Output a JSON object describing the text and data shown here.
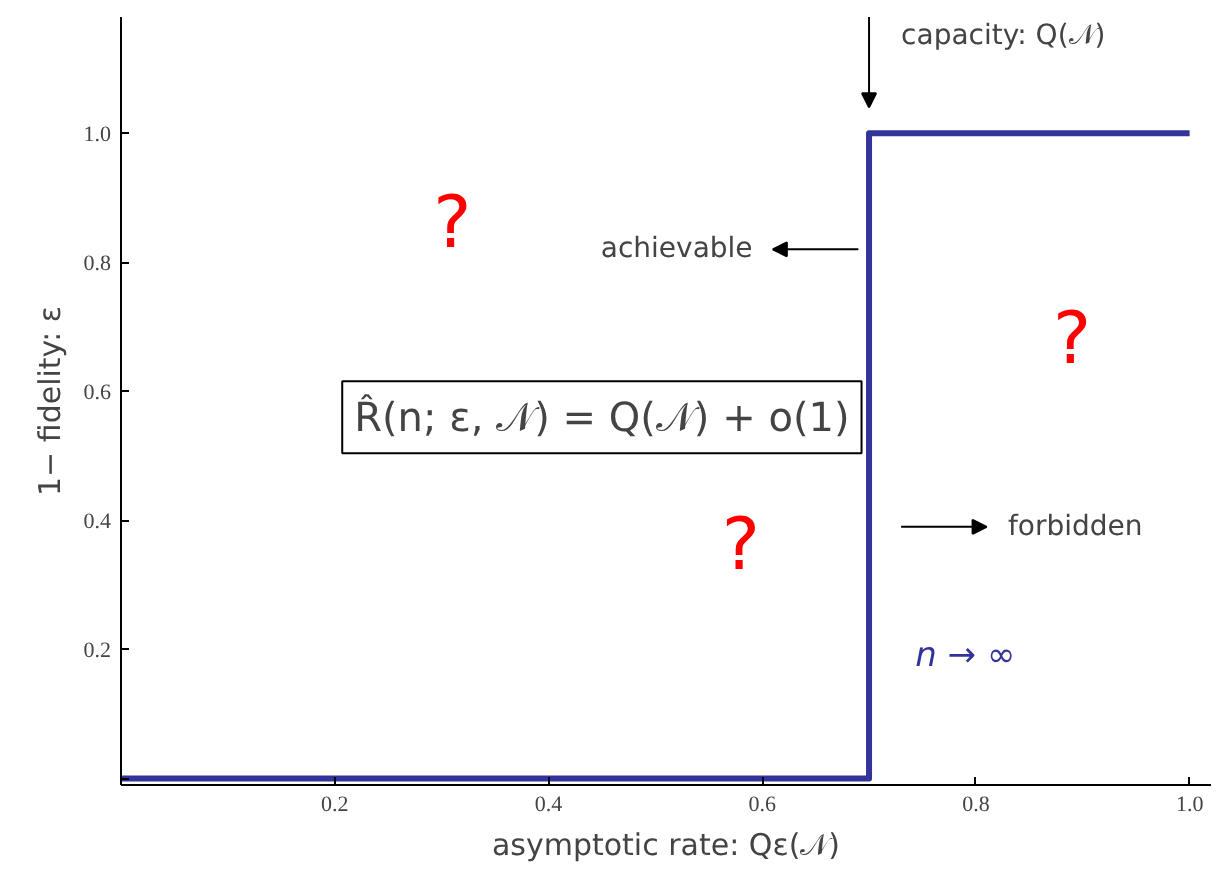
{
  "chart_data": {
    "type": "line",
    "xlabel": "asymptotic rate: Qε(𝒩)",
    "ylabel": "1− fidelity: ε",
    "x": [
      0,
      0.7,
      0.7,
      1.0
    ],
    "series": [
      {
        "color": "#333399",
        "values": [
          0,
          0,
          1,
          1
        ]
      }
    ],
    "xlim": [
      0,
      1.02
    ],
    "ylim": [
      -0.01,
      1.18
    ],
    "xticks": [
      {
        "value": 0,
        "label": null
      },
      0.2,
      0.4,
      0.6,
      0.8,
      {
        "value": 1,
        "label": "1.0"
      }
    ],
    "yticks": [
      {
        "value": 0,
        "label": null
      },
      0.2,
      0.4,
      0.6,
      0.8,
      {
        "value": 1,
        "label": "1.0"
      }
    ],
    "grid": false,
    "marker": "none",
    "line_style": "solid",
    "annotations": [
      "capacity: Q(𝒩)",
      "achievable",
      "forbidden",
      "n → ∞",
      "R̂(n; ε, 𝒩) = Q(𝒩) + o(1)",
      "?",
      "?",
      "?"
    ]
  }
}
